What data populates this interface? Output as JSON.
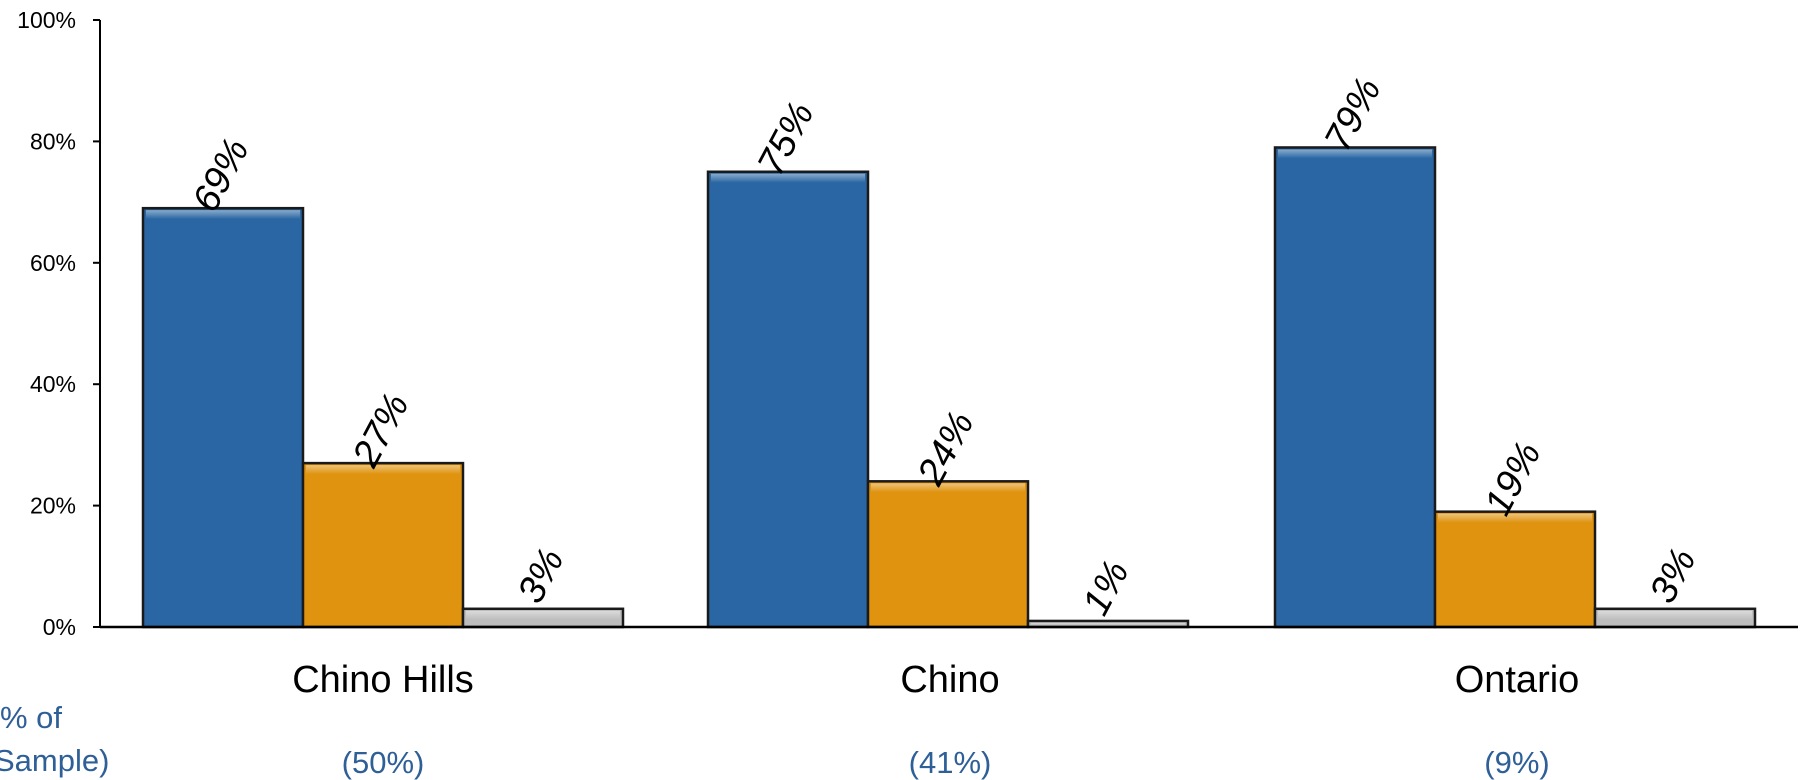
{
  "chart_data": {
    "type": "bar",
    "categories": [
      "Chino Hills",
      "Chino",
      "Ontario"
    ],
    "series": [
      {
        "values": [
          69,
          75,
          79
        ],
        "labels": [
          "69%",
          "75%",
          "79%"
        ],
        "color": "#2966A3"
      },
      {
        "values": [
          27,
          24,
          19
        ],
        "labels": [
          "27%",
          "24%",
          "19%"
        ],
        "color": "#DF930F"
      },
      {
        "values": [
          3,
          1,
          3
        ],
        "labels": [
          "3%",
          "1%",
          "3%"
        ],
        "color": "#BDBDBD"
      }
    ],
    "ylim": [
      0,
      100
    ],
    "yticks": [
      "0%",
      "20%",
      "40%",
      "60%",
      "80%",
      "100%"
    ],
    "ytick_values": [
      0,
      20,
      40,
      60,
      80,
      100
    ],
    "grid": false,
    "sample_share": {
      "label_line1": "% of",
      "label_line2": "Sample)",
      "values": [
        "(50%)",
        "(41%)",
        "(9%)"
      ],
      "color": "#2E5F97"
    }
  }
}
